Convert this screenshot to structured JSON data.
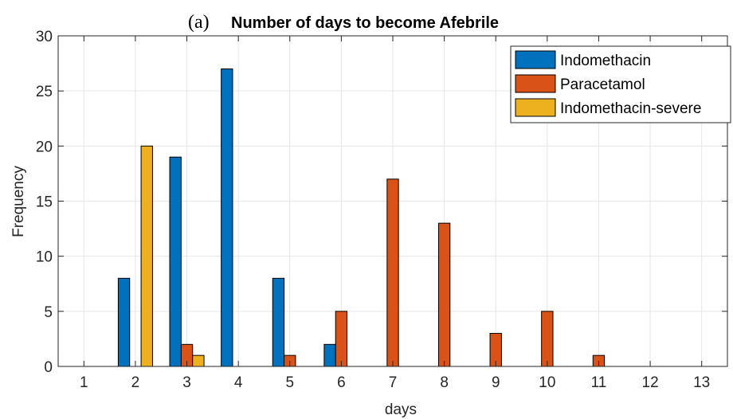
{
  "chart_data": {
    "type": "bar",
    "panel_label": "(a)",
    "title": "Number of days to become Afebrile",
    "xlabel": "days",
    "ylabel": "Frequency",
    "xlim": [
      0.5,
      13.5
    ],
    "ylim": [
      0,
      30
    ],
    "x_ticks": [
      1,
      2,
      3,
      4,
      5,
      6,
      7,
      8,
      9,
      10,
      11,
      12,
      13
    ],
    "y_ticks": [
      0,
      5,
      10,
      15,
      20,
      25,
      30
    ],
    "grid": true,
    "legend_position": "top-right",
    "categories": [
      1,
      2,
      3,
      4,
      5,
      6,
      7,
      8,
      9,
      10,
      11,
      12,
      13
    ],
    "series": [
      {
        "name": "Indomethacin",
        "color": "#0072BD",
        "values": [
          0,
          8,
          19,
          27,
          8,
          2,
          0,
          0,
          0,
          0,
          0,
          0,
          0
        ]
      },
      {
        "name": "Paracetamol",
        "color": "#D95319",
        "values": [
          0,
          0,
          2,
          0,
          1,
          5,
          17,
          13,
          3,
          5,
          1,
          0,
          0
        ]
      },
      {
        "name": "Indomethacin-severe",
        "color": "#EDB120",
        "values": [
          0,
          20,
          1,
          0,
          0,
          0,
          0,
          0,
          0,
          0,
          0,
          0,
          0
        ]
      }
    ]
  }
}
